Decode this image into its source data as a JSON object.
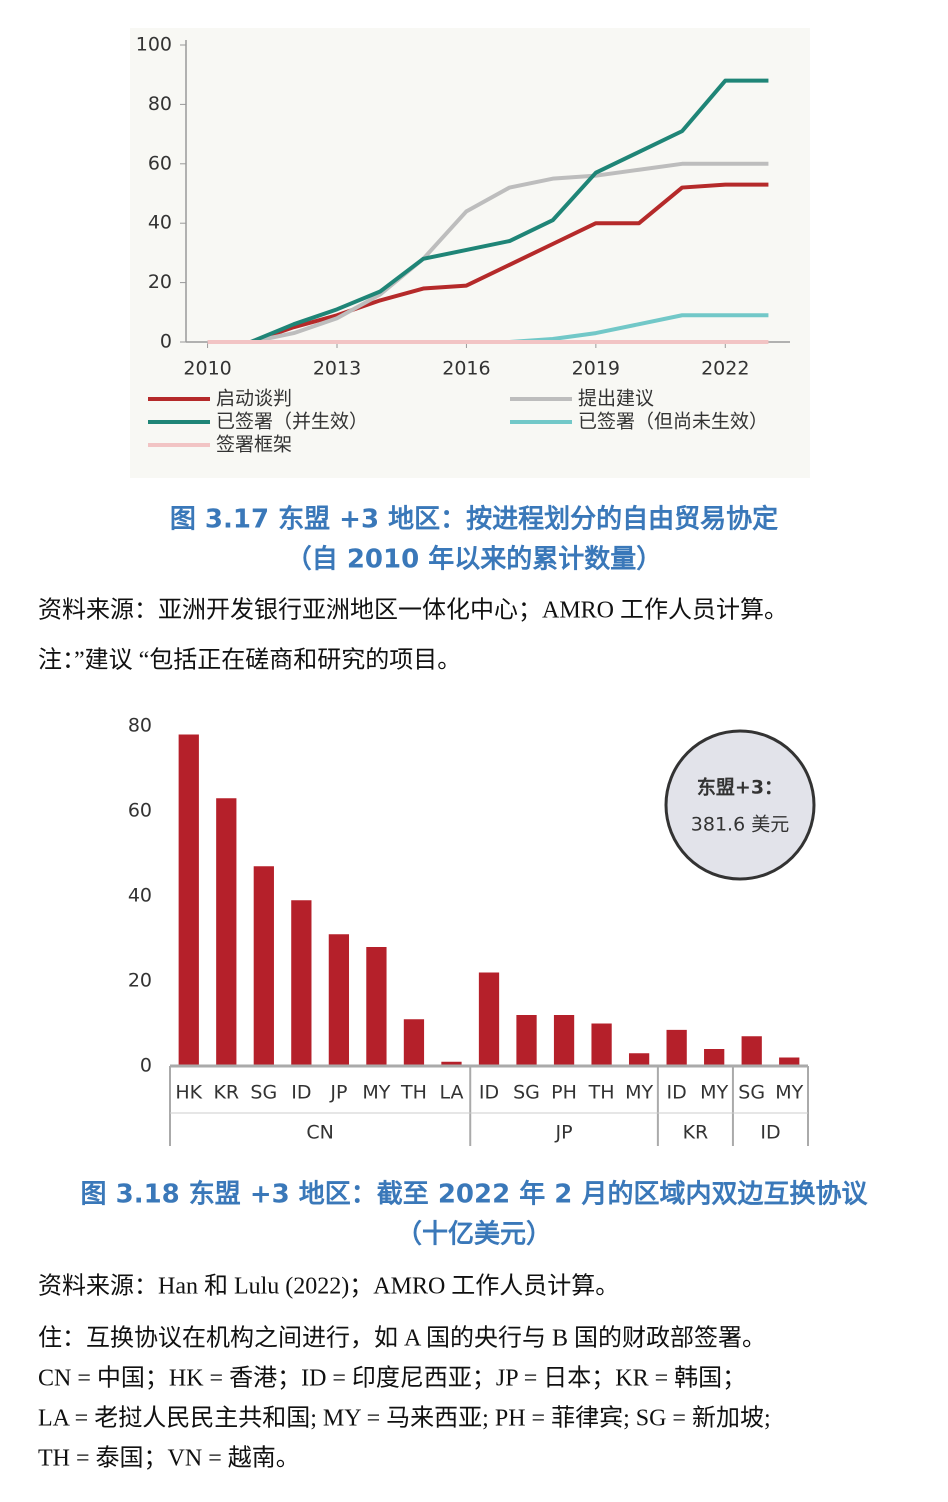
{
  "chart_data": [
    {
      "type": "line",
      "x": [
        2010,
        2011,
        2012,
        2013,
        2014,
        2015,
        2016,
        2017,
        2018,
        2019,
        2020,
        2021,
        2022,
        2023
      ],
      "xlim": [
        2009.5,
        2023.5
      ],
      "xticks": [
        2010,
        2013,
        2016,
        2019,
        2022
      ],
      "ylim": [
        0,
        100
      ],
      "yticks": [
        0,
        20,
        40,
        60,
        80,
        100
      ],
      "series": [
        {
          "name": "启动谈判",
          "color": "#b52a2a",
          "values": [
            0,
            0,
            5,
            9,
            14,
            18,
            19,
            26,
            33,
            40,
            40,
            52,
            53,
            53
          ]
        },
        {
          "name": "提出建议",
          "color": "#bdbdbd",
          "values": [
            0,
            0,
            3,
            8,
            16,
            28,
            44,
            52,
            55,
            56,
            58,
            60,
            60,
            60
          ]
        },
        {
          "name": "已签署（并生效）",
          "color": "#1f8577",
          "values": [
            0,
            0,
            6,
            11,
            17,
            28,
            31,
            34,
            41,
            57,
            64,
            71,
            88,
            88
          ]
        },
        {
          "name": "已签署（但尚未生效）",
          "color": "#72c8c8",
          "values": [
            0,
            0,
            0,
            0,
            0,
            0,
            0,
            0,
            1,
            3,
            6,
            9,
            9,
            9
          ]
        },
        {
          "name": "签署框架",
          "color": "#f2c4c4",
          "values": [
            0,
            0,
            0,
            0,
            0,
            0,
            0,
            0,
            0,
            0,
            0,
            0,
            0,
            0
          ]
        }
      ],
      "title": "图 3.17  东盟 +3 地区：按进程划分的自由贸易协定",
      "subtitle": "（自 2010 年以来的累计数量）",
      "source": "资料来源：亚洲开发银行亚洲地区一体化中心；AMRO 工作人员计算。",
      "note": [
        "注：”建议 “包括正在磋商和研究的项目。"
      ]
    },
    {
      "type": "bar",
      "categories": [
        "HK",
        "KR",
        "SG",
        "ID",
        "JP",
        "MY",
        "TH",
        "LA",
        "ID",
        "SG",
        "PH",
        "TH",
        "MY",
        "ID",
        "MY",
        "SG",
        "MY"
      ],
      "values": [
        78,
        63,
        47,
        39,
        31,
        28,
        11,
        1,
        22,
        12,
        12,
        10,
        3,
        8.5,
        4,
        7,
        2
      ],
      "groups": [
        {
          "name": "CN",
          "span": 8
        },
        {
          "name": "JP",
          "span": 5
        },
        {
          "name": "KR",
          "span": 2
        },
        {
          "name": "ID",
          "span": 2
        }
      ],
      "color": "#b5202a",
      "ylim": [
        0,
        80
      ],
      "yticks": [
        0,
        20,
        40,
        60,
        80
      ],
      "annotation": [
        "东盟+3：",
        "381.6 美元"
      ],
      "title": "图 3.18  东盟 +3 地区：截至 2022 年 2 月的区域内双边互换协议",
      "subtitle": "（十亿美元）",
      "source": "资料来源：Han 和 Lulu (2022)；AMRO 工作人员计算。",
      "note": [
        "住：互换协议在机构之间进行，如 A 国的央行与 B 国的财政部签署。",
        "CN = 中国；HK = 香港；ID = 印度尼西亚；JP = 日本；KR = 韩国；",
        "LA = 老挝人民民主共和国; MY = 马来西亚; PH = 菲律宾; SG = 新加坡;",
        "TH = 泰国；VN = 越南。"
      ]
    }
  ]
}
